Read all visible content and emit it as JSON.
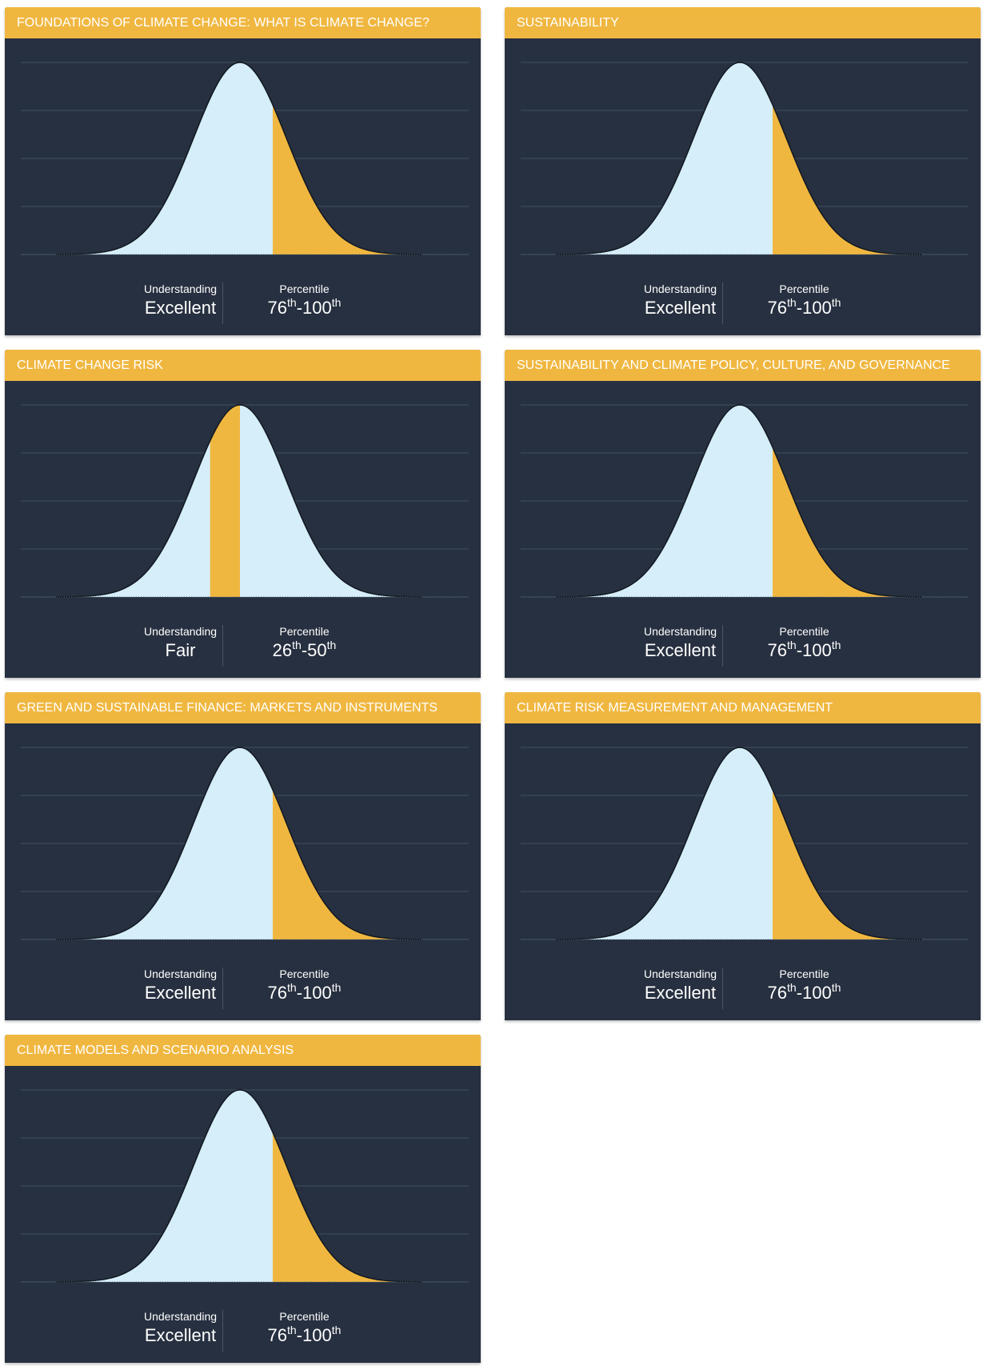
{
  "colors": {
    "header": "#f0b740",
    "panel": "#273040",
    "curve": "#d5eefa",
    "highlight": "#f0b740",
    "grid": "#3d5060"
  },
  "labels": {
    "understanding": "Understanding",
    "percentile": "Percentile",
    "th": "th"
  },
  "cards": [
    {
      "title": "FOUNDATIONS OF CLIMATE CHANGE: WHAT IS CLIMATE CHANGE?",
      "understanding": "Excellent",
      "pct_low": "76",
      "pct_high": "100"
    },
    {
      "title": "SUSTAINABILITY",
      "understanding": "Excellent",
      "pct_low": "76",
      "pct_high": "100"
    },
    {
      "title": "CLIMATE CHANGE RISK",
      "understanding": "Fair",
      "pct_low": "26",
      "pct_high": "50"
    },
    {
      "title": "SUSTAINABILITY AND CLIMATE POLICY, CULTURE, AND GOVERNANCE",
      "understanding": "Excellent",
      "pct_low": "76",
      "pct_high": "100"
    },
    {
      "title": "GREEN AND SUSTAINABLE FINANCE: MARKETS AND INSTRUMENTS",
      "understanding": "Excellent",
      "pct_low": "76",
      "pct_high": "100"
    },
    {
      "title": "CLIMATE RISK MEASUREMENT AND MANAGEMENT",
      "understanding": "Excellent",
      "pct_low": "76",
      "pct_high": "100"
    },
    {
      "title": "CLIMATE MODELS AND SCENARIO ANALYSIS",
      "understanding": "Excellent",
      "pct_low": "76",
      "pct_high": "100"
    }
  ],
  "chart_data": [
    {
      "type": "area",
      "distribution": "normal",
      "highlight_percentile": [
        76,
        100
      ],
      "grid": true
    },
    {
      "type": "area",
      "distribution": "normal",
      "highlight_percentile": [
        76,
        100
      ],
      "grid": true
    },
    {
      "type": "area",
      "distribution": "normal",
      "highlight_percentile": [
        26,
        50
      ],
      "grid": true
    },
    {
      "type": "area",
      "distribution": "normal",
      "highlight_percentile": [
        76,
        100
      ],
      "grid": true
    },
    {
      "type": "area",
      "distribution": "normal",
      "highlight_percentile": [
        76,
        100
      ],
      "grid": true
    },
    {
      "type": "area",
      "distribution": "normal",
      "highlight_percentile": [
        76,
        100
      ],
      "grid": true
    },
    {
      "type": "area",
      "distribution": "normal",
      "highlight_percentile": [
        76,
        100
      ],
      "grid": true
    }
  ]
}
